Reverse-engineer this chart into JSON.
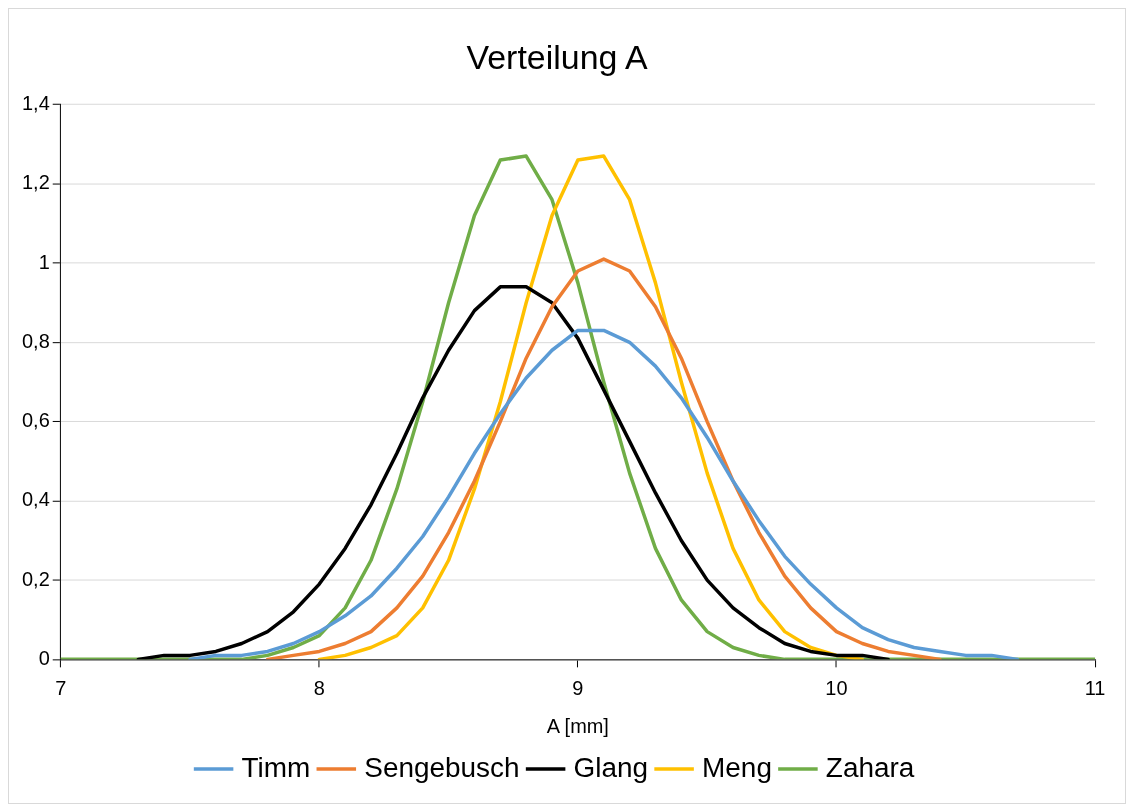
{
  "chart_data": {
    "type": "line",
    "title": "Verteilung A",
    "xlabel": "A [mm]",
    "series": [
      {
        "name": "Timm",
        "color": "#5b9bd5",
        "x": [
          7.5,
          7.6,
          7.7,
          7.8,
          7.9,
          8,
          8.1,
          8.2,
          8.3,
          8.4,
          8.5,
          8.6,
          8.7,
          8.8,
          8.9,
          9,
          9.1,
          9.2,
          9.3,
          9.4,
          9.5,
          9.6,
          9.7,
          9.8,
          9.9,
          10,
          10.1,
          10.2,
          10.3,
          10.4,
          10.5,
          10.6,
          10.7
        ],
        "values": [
          0,
          0.01,
          0.01,
          0.02,
          0.04,
          0.07,
          0.11,
          0.16,
          0.23,
          0.31,
          0.41,
          0.52,
          0.62,
          0.71,
          0.78,
          0.83,
          0.83,
          0.8,
          0.74,
          0.66,
          0.56,
          0.45,
          0.35,
          0.26,
          0.19,
          0.13,
          0.08,
          0.05,
          0.03,
          0.02,
          0.01,
          0.01,
          0
        ]
      },
      {
        "name": "Sengebusch",
        "color": "#ed7d31",
        "x": [
          7.8,
          7.9,
          8,
          8.1,
          8.2,
          8.3,
          8.4,
          8.5,
          8.6,
          8.7,
          8.8,
          8.9,
          9,
          9.1,
          9.2,
          9.3,
          9.4,
          9.5,
          9.6,
          9.7,
          9.8,
          9.9,
          10,
          10.1,
          10.2,
          10.3,
          10.4
        ],
        "values": [
          0,
          0.01,
          0.02,
          0.04,
          0.07,
          0.13,
          0.21,
          0.32,
          0.45,
          0.6,
          0.76,
          0.89,
          0.98,
          1.01,
          0.98,
          0.89,
          0.76,
          0.6,
          0.45,
          0.32,
          0.21,
          0.13,
          0.07,
          0.04,
          0.02,
          0.01,
          0
        ]
      },
      {
        "name": "Glang",
        "color": "#000000",
        "x": [
          7.3,
          7.4,
          7.5,
          7.6,
          7.7,
          7.8,
          7.9,
          8,
          8.1,
          8.2,
          8.3,
          8.4,
          8.5,
          8.6,
          8.7,
          8.8,
          8.9,
          9,
          9.1,
          9.2,
          9.3,
          9.4,
          9.5,
          9.6,
          9.7,
          9.8,
          9.9,
          10,
          10.1,
          10.2
        ],
        "values": [
          0,
          0.01,
          0.01,
          0.02,
          0.04,
          0.07,
          0.12,
          0.19,
          0.28,
          0.39,
          0.52,
          0.66,
          0.78,
          0.88,
          0.94,
          0.94,
          0.9,
          0.81,
          0.68,
          0.55,
          0.42,
          0.3,
          0.2,
          0.13,
          0.08,
          0.04,
          0.02,
          0.01,
          0.01,
          0
        ]
      },
      {
        "name": "Meng",
        "color": "#ffc000",
        "x": [
          8,
          8.1,
          8.2,
          8.3,
          8.4,
          8.5,
          8.6,
          8.7,
          8.8,
          8.9,
          9,
          9.1,
          9.2,
          9.3,
          9.4,
          9.5,
          9.6,
          9.7,
          9.8,
          9.9,
          10,
          10.1
        ],
        "values": [
          0,
          0.01,
          0.03,
          0.06,
          0.13,
          0.25,
          0.43,
          0.65,
          0.9,
          1.12,
          1.26,
          1.27,
          1.16,
          0.95,
          0.7,
          0.47,
          0.28,
          0.15,
          0.07,
          0.03,
          0.01,
          0
        ]
      },
      {
        "name": "Zahara",
        "color": "#70ad47",
        "x": [
          7,
          7.7,
          7.8,
          7.9,
          8,
          8.1,
          8.2,
          8.3,
          8.4,
          8.5,
          8.6,
          8.7,
          8.8,
          8.9,
          9,
          9.1,
          9.2,
          9.3,
          9.4,
          9.5,
          9.6,
          9.7,
          9.8,
          11
        ],
        "values": [
          0,
          0,
          0.01,
          0.03,
          0.06,
          0.13,
          0.25,
          0.43,
          0.65,
          0.9,
          1.12,
          1.26,
          1.27,
          1.16,
          0.95,
          0.7,
          0.47,
          0.28,
          0.15,
          0.07,
          0.03,
          0.01,
          0,
          0
        ]
      }
    ],
    "xlim": [
      7,
      11
    ],
    "xticks": [
      7,
      8,
      9,
      10,
      11
    ],
    "ylim": [
      0,
      1.4
    ],
    "yticks": [
      0,
      {
        "value": 0.2,
        "label": "0,2"
      },
      {
        "value": 0.4,
        "label": "0,4"
      },
      {
        "value": 0.6,
        "label": "0,6"
      },
      {
        "value": 0.8,
        "label": "0,8"
      },
      1,
      {
        "value": 1.2,
        "label": "1,2"
      },
      {
        "value": 1.4,
        "label": "1,4"
      }
    ],
    "grid": "y",
    "legend": "bottom",
    "marker": "none",
    "line_style": "solid"
  }
}
